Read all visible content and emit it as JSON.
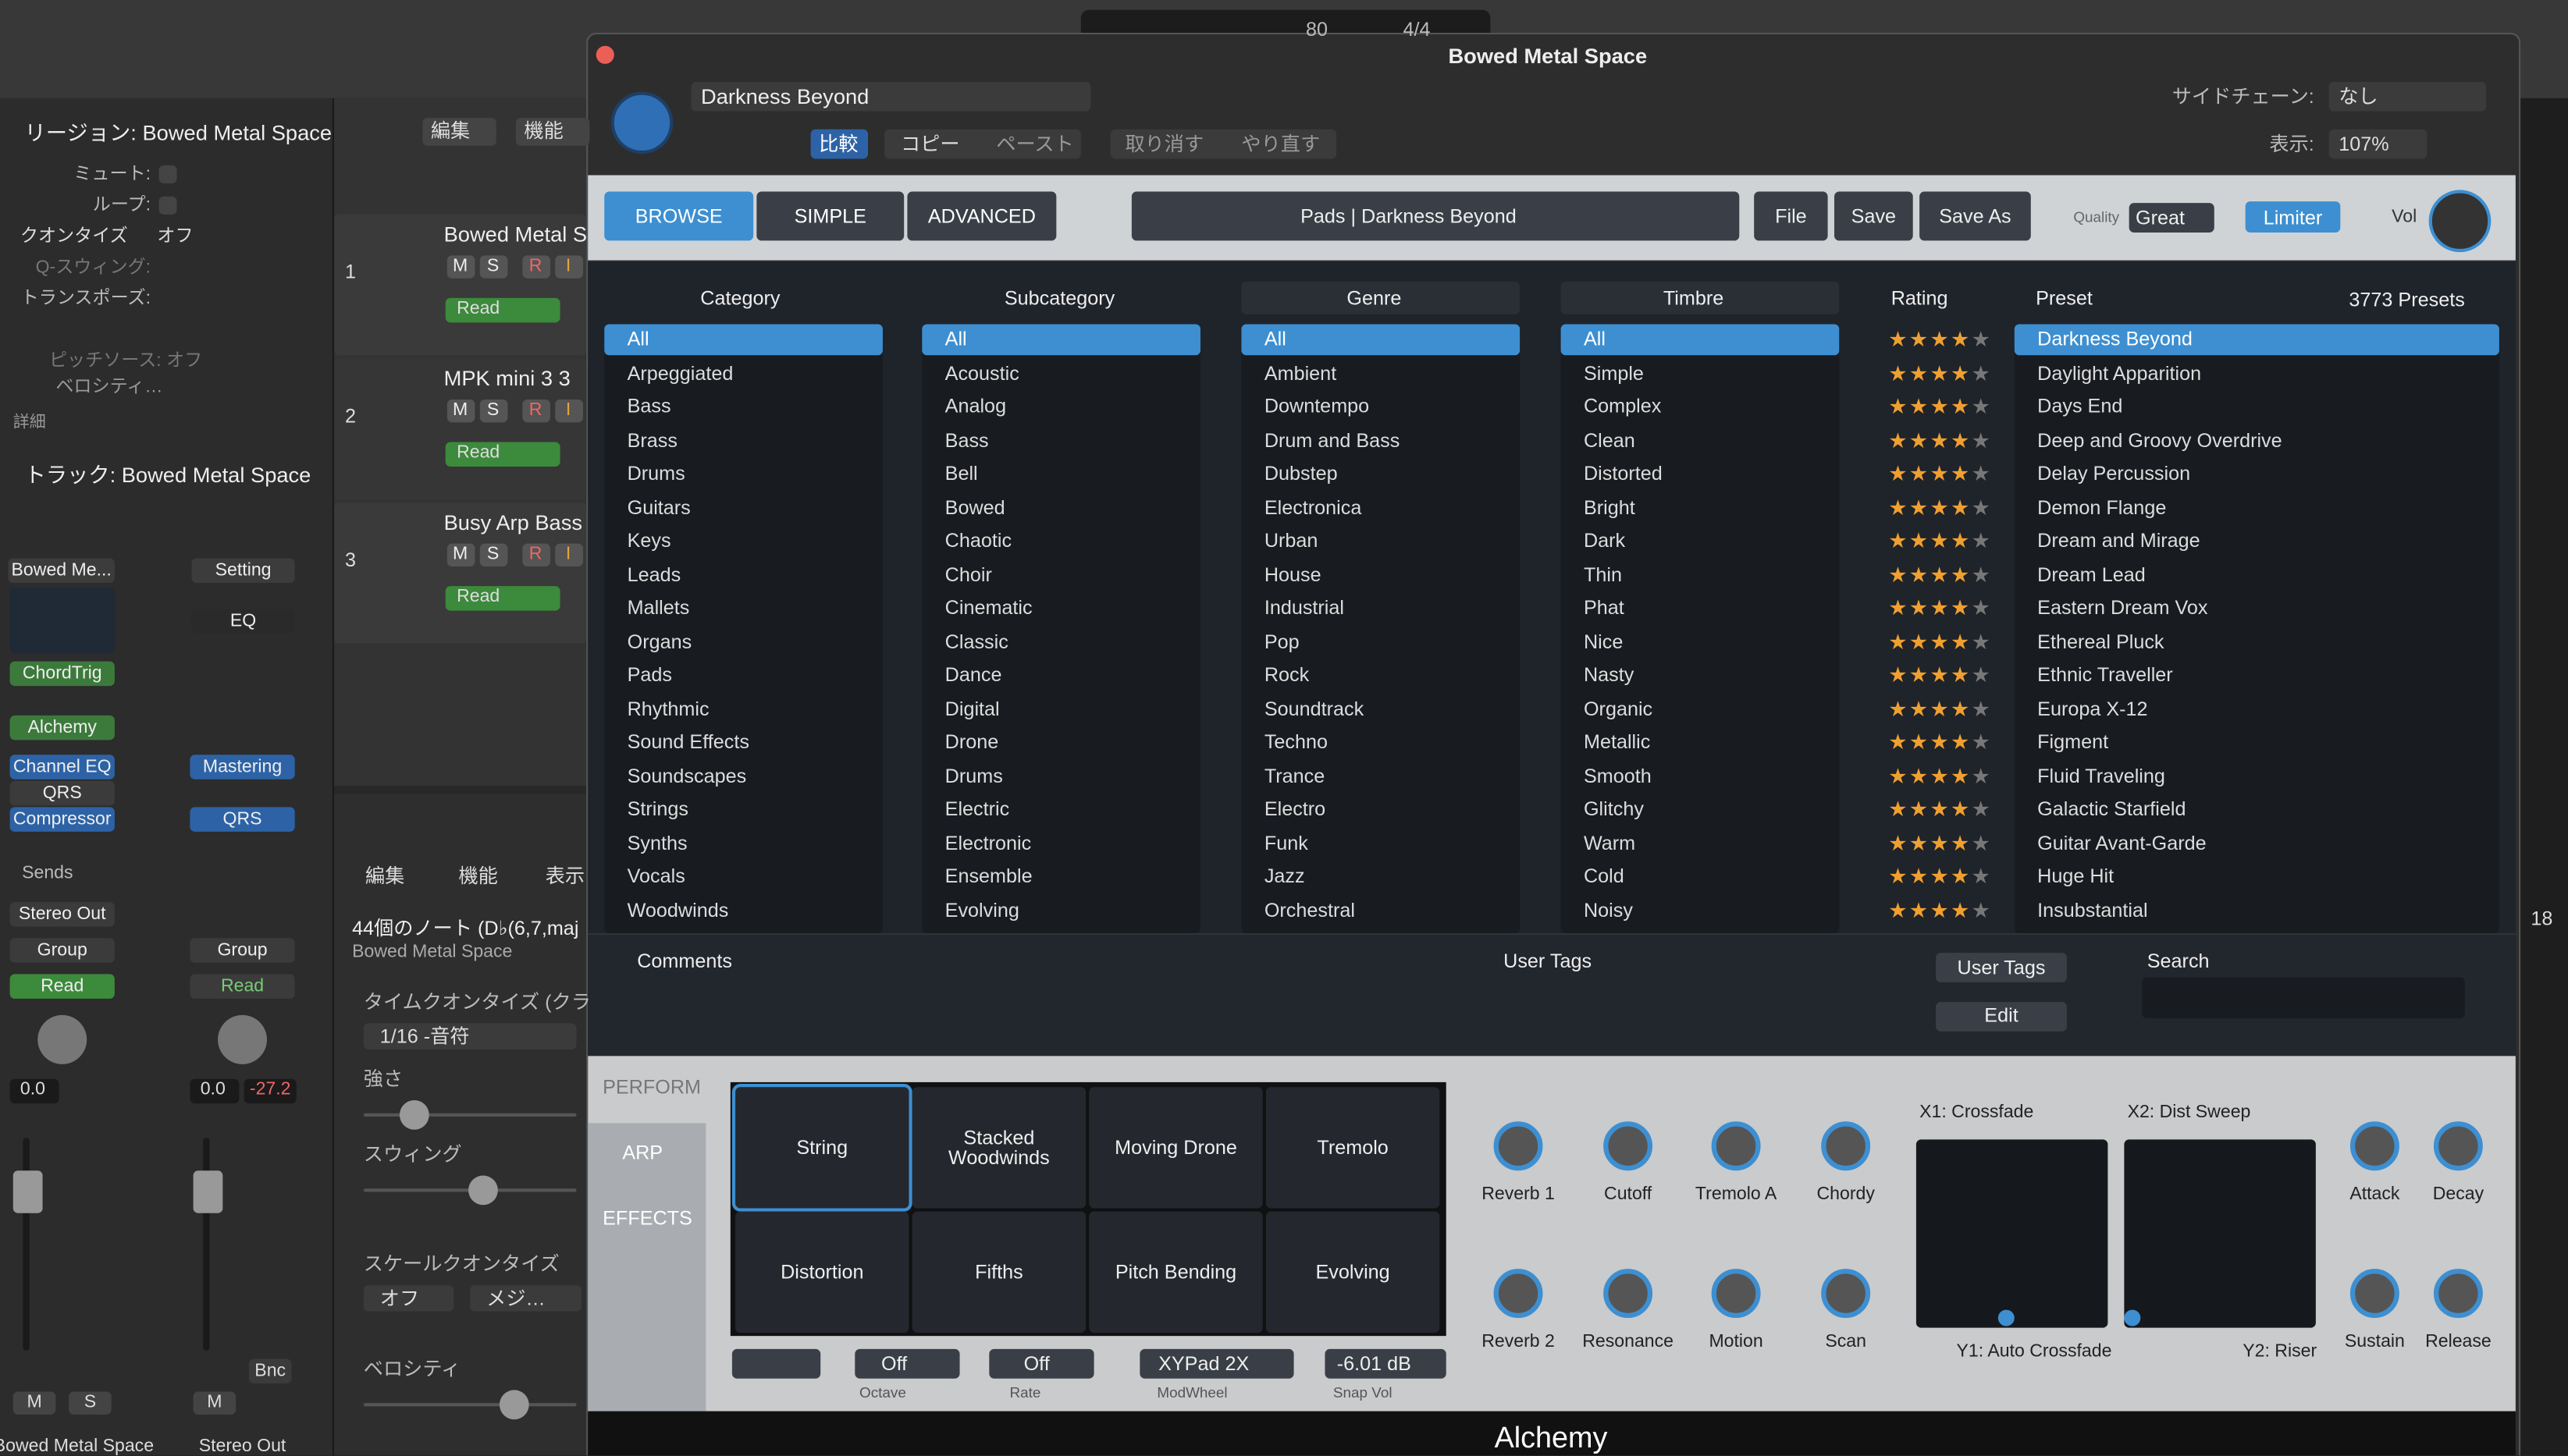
{
  "transport": {
    "tempo": "80",
    "signature": "4/4"
  },
  "inspector": {
    "region": "リージョン: Bowed Metal Space",
    "mute": "ミュート:",
    "loop": "ループ:",
    "quantize": "クオンタイズ",
    "quantize_value": "オフ",
    "q_swing": "Q-スウィング:",
    "transpose": "トランスポーズ:",
    "pitch_source": "ピッチソース: オフ",
    "velocity": "ベロシティ…",
    "details": "詳細",
    "track": "トラック: Bowed Metal Space"
  },
  "strips": {
    "setting1": "Bowed Me...",
    "setting2": "Setting",
    "eq": "EQ",
    "chordtrig": "ChordTrig",
    "instrument": "Alchemy",
    "fx1": "Channel EQ",
    "fx2": "QRS",
    "fx3": "Compressor",
    "fx4": "Mastering",
    "fx5": "QRS",
    "sends": "Sends",
    "output": "Stereo Out",
    "group1": "Group",
    "group2": "Group",
    "auto1": "Read",
    "auto2": "Read",
    "vol1": "0.0",
    "vol2": "0.0",
    "peak2": "-27.2",
    "bnc": "Bnc",
    "m1": "M",
    "s1": "S",
    "m2": "M",
    "name1": "Bowed Metal Space",
    "name2": "Stereo Out"
  },
  "tracks": {
    "edit": "編集",
    "functions": "機能",
    "list": [
      {
        "number": "1",
        "name": "Bowed Metal S",
        "buttons": [
          "M",
          "S",
          "R",
          "I"
        ],
        "automation": "Read"
      },
      {
        "number": "2",
        "name": "MPK mini 3 3",
        "buttons": [
          "M",
          "S",
          "R",
          "I"
        ],
        "automation": "Read"
      },
      {
        "number": "3",
        "name": "Busy Arp Bass",
        "buttons": [
          "M",
          "S",
          "R",
          "I"
        ],
        "automation": "Read"
      }
    ]
  },
  "editor": {
    "edit": "編集",
    "functions": "機能",
    "view": "表示",
    "notes": "44個のノート (D♭(6,7,maj",
    "region": "Bowed Metal Space",
    "time_quantize": "タイムクオンタイズ (クラ",
    "note_value": "1/16 -音符",
    "strength": "強さ",
    "swing": "スウィング",
    "scale_quantize": "スケールクオンタイズ",
    "scale_off": "オフ",
    "scale_type": "メジ…",
    "velocity": "ベロシティ"
  },
  "plugin": {
    "title": "Bowed Metal Space",
    "preset": "Darkness Beyond",
    "compare": "比較",
    "copy": "コピー",
    "paste": "ペースト",
    "undo": "取り消す",
    "redo": "やり直す",
    "sidechain_label": "サイドチェーン:",
    "sidechain": "なし",
    "view_label": "表示:",
    "view": "107%"
  },
  "alchemy": {
    "tabs": [
      "BROWSE",
      "SIMPLE",
      "ADVANCED"
    ],
    "preset_path": "Pads | Darkness Beyond",
    "file": "File",
    "save": "Save",
    "save_as": "Save As",
    "quality_label": "Quality",
    "quality": "Great",
    "limiter": "Limiter",
    "vol": "Vol"
  },
  "browser": {
    "headers": {
      "category": "Category",
      "subcategory": "Subcategory",
      "genre": "Genre",
      "timbre": "Timbre",
      "rating": "Rating",
      "preset": "Preset",
      "count": "3773 Presets"
    },
    "category": [
      "All",
      "Arpeggiated",
      "Bass",
      "Brass",
      "Drums",
      "Guitars",
      "Keys",
      "Leads",
      "Mallets",
      "Organs",
      "Pads",
      "Rhythmic",
      "Sound Effects",
      "Soundscapes",
      "Strings",
      "Synths",
      "Vocals",
      "Woodwinds"
    ],
    "subcategory": [
      "All",
      "Acoustic",
      "Analog",
      "Bass",
      "Bell",
      "Bowed",
      "Chaotic",
      "Choir",
      "Cinematic",
      "Classic",
      "Dance",
      "Digital",
      "Drone",
      "Drums",
      "Electric",
      "Electronic",
      "Ensemble",
      "Evolving"
    ],
    "genre": [
      "All",
      "Ambient",
      "Downtempo",
      "Drum and Bass",
      "Dubstep",
      "Electronica",
      "Urban",
      "House",
      "Industrial",
      "Pop",
      "Rock",
      "Soundtrack",
      "Techno",
      "Trance",
      "Electro",
      "Funk",
      "Jazz",
      "Orchestral"
    ],
    "timbre": [
      "All",
      "Simple",
      "Complex",
      "Clean",
      "Distorted",
      "Bright",
      "Dark",
      "Thin",
      "Phat",
      "Nice",
      "Nasty",
      "Organic",
      "Metallic",
      "Smooth",
      "Glitchy",
      "Warm",
      "Cold",
      "Noisy"
    ],
    "presets": [
      "Darkness Beyond",
      "Daylight Apparition",
      "Days End",
      "Deep and Groovy Overdrive",
      "Delay Percussion",
      "Demon Flange",
      "Dream and Mirage",
      "Dream Lead",
      "Eastern Dream Vox",
      "Ethereal Pluck",
      "Ethnic Traveller",
      "Europa X-12",
      "Figment",
      "Fluid Traveling",
      "Galactic Starfield",
      "Guitar Avant-Garde",
      "Huge Hit",
      "Insubstantial"
    ],
    "ratings": [
      4,
      4,
      4,
      4,
      4,
      4,
      4,
      4,
      4,
      4,
      4,
      4,
      4,
      4,
      4,
      4,
      4,
      4
    ],
    "comments": "Comments",
    "user_tags_label": "User Tags",
    "user_tags_button": "User Tags",
    "edit": "Edit",
    "search": "Search"
  },
  "perform": {
    "perform": "PERFORM",
    "arp": "ARP",
    "effects": "EFFECTS",
    "pads": [
      "String",
      "Stacked Woodwinds",
      "Moving Drone",
      "Tremolo",
      "Distortion",
      "Fifths",
      "Pitch Bending",
      "Evolving"
    ],
    "knobs": [
      "Reverb 1",
      "Cutoff",
      "Tremolo A",
      "Chordy",
      "Reverb 2",
      "Resonance",
      "Motion",
      "Scan"
    ],
    "envelope": [
      "Attack",
      "Decay",
      "Sustain",
      "Release"
    ],
    "xy": {
      "x1": "X1: Crossfade",
      "x2": "X2: Dist Sweep",
      "y1": "Y1: Auto Crossfade",
      "y2": "Y2: Riser"
    },
    "controls": [
      {
        "value": "Off",
        "label": "Octave"
      },
      {
        "value": "Off",
        "label": "Rate"
      },
      {
        "value": "XYPad 2X",
        "label": "ModWheel"
      },
      {
        "value": "-6.01 dB",
        "label": "Snap Vol"
      }
    ]
  },
  "footer": "Alchemy",
  "edge": "18"
}
